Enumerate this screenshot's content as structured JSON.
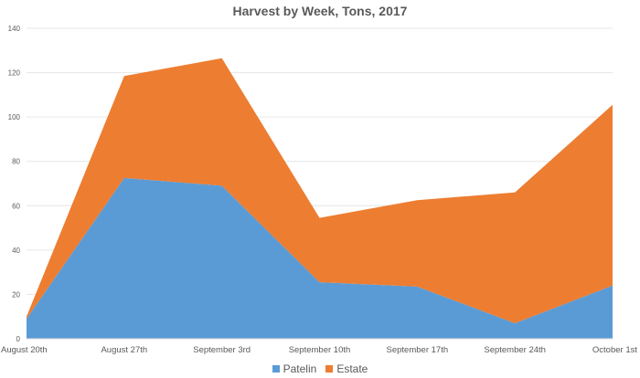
{
  "chart_data": {
    "type": "area",
    "stacked": true,
    "title": "Harvest by Week, Tons, 2017",
    "xlabel": "",
    "ylabel": "",
    "categories": [
      "August 20th",
      "August 27th",
      "September 3rd",
      "September 10th",
      "September 17th",
      "September 24th",
      "October 1st"
    ],
    "series": [
      {
        "name": "Patelin",
        "color": "#5b9bd5",
        "values": [
          9,
          72.5,
          69,
          25.5,
          23.5,
          7,
          24
        ]
      },
      {
        "name": "Estate",
        "color": "#ed7d31",
        "values": [
          1,
          46,
          57.5,
          29,
          39,
          59,
          81.5
        ]
      }
    ],
    "ylim": [
      0,
      140
    ],
    "yticks": [
      0,
      20,
      40,
      60,
      80,
      100,
      120,
      140
    ],
    "grid": true,
    "legend_position": "bottom"
  }
}
